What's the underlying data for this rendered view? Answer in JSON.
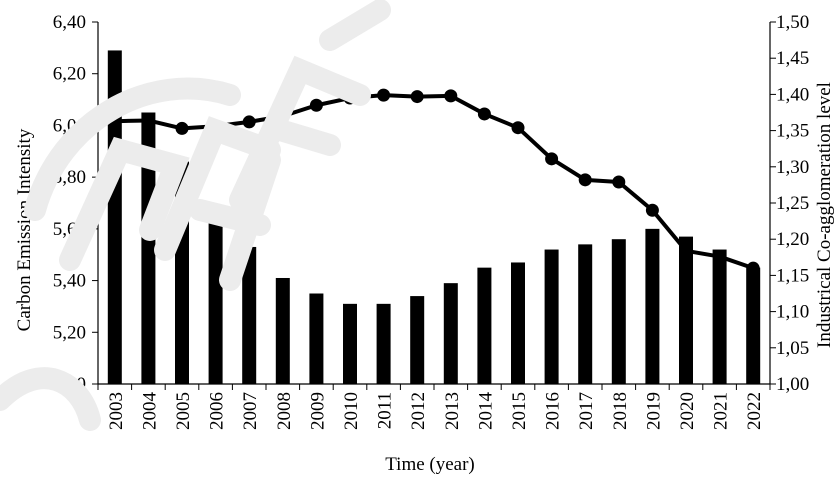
{
  "chart_data": {
    "type": "bar",
    "categories": [
      "2003",
      "2004",
      "2005",
      "2006",
      "2007",
      "2008",
      "2009",
      "2010",
      "2011",
      "2012",
      "2013",
      "2014",
      "2015",
      "2016",
      "2017",
      "2018",
      "2019",
      "2020",
      "2021",
      "2022"
    ],
    "xlabel": "Time (year)",
    "ylabel": "Carbon Emission Intensity",
    "y2label": "Industrical Co-agglomeration level",
    "ylim": [
      5.0,
      6.4
    ],
    "y2lim": [
      1.0,
      1.5
    ],
    "yticks": [
      "5,00",
      "5,20",
      "5,40",
      "5,60",
      "5,80",
      "6,00",
      "6,20",
      "6,40"
    ],
    "y2ticks": [
      "1,00",
      "1,05",
      "1,10",
      "1,15",
      "1,20",
      "1,25",
      "1,30",
      "1,35",
      "1,40",
      "1,45",
      "1,50"
    ],
    "grid": false,
    "legend": "none",
    "series": [
      {
        "type": "bar",
        "axis": "left",
        "values": [
          6.29,
          6.05,
          5.86,
          5.68,
          5.53,
          5.41,
          5.35,
          5.31,
          5.31,
          5.34,
          5.39,
          5.45,
          5.47,
          5.52,
          5.54,
          5.56,
          5.6,
          5.57,
          5.52,
          5.45
        ]
      },
      {
        "type": "line",
        "axis": "right",
        "values": [
          1.363,
          1.364,
          1.353,
          1.356,
          1.362,
          1.37,
          1.385,
          1.395,
          1.399,
          1.397,
          1.398,
          1.373,
          1.354,
          1.311,
          1.282,
          1.279,
          1.24,
          1.184,
          1.176,
          1.16
        ]
      }
    ],
    "colors": {
      "bar": "#000000",
      "line": "#000000",
      "watermark": "#eeeeee"
    }
  }
}
